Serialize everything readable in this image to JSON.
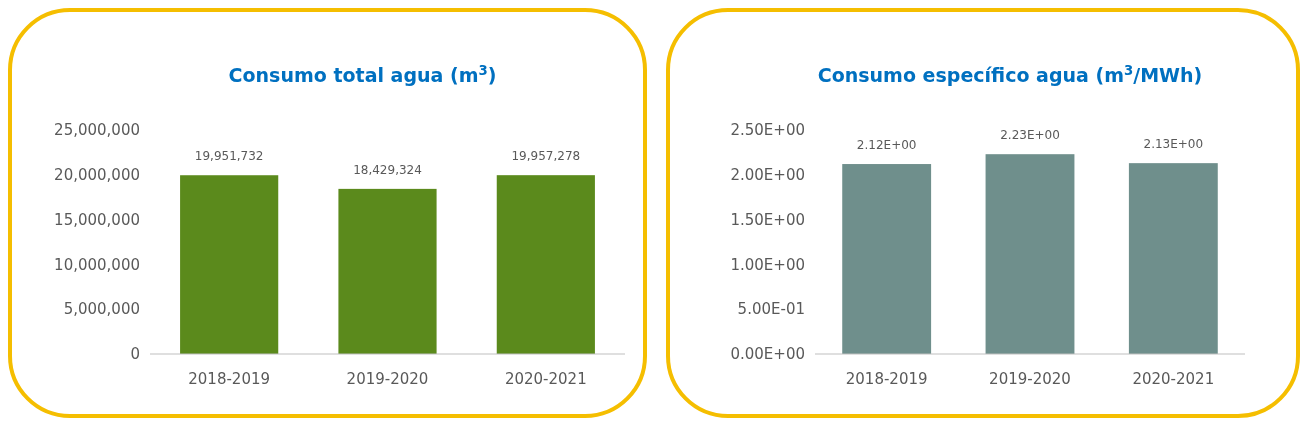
{
  "chart_data": [
    {
      "type": "bar",
      "title": "Consumo total agua (m$^{3}$)",
      "categories": [
        "2018-2019",
        "2019-2020",
        "2020-2021"
      ],
      "values": [
        19951732,
        18429324,
        19957278
      ],
      "value_labels": [
        "19,951,732",
        "18,429,324",
        "19,957,278"
      ],
      "color": "#5b8a1c",
      "ylim": [
        0,
        25000000
      ],
      "yticks": [
        {
          "value": 0,
          "label": "0"
        },
        {
          "value": 5000000,
          "label": "5,000,000"
        },
        {
          "value": 10000000,
          "label": "10,000,000"
        },
        {
          "value": 15000000,
          "label": "15,000,000"
        },
        {
          "value": 20000000,
          "label": "20,000,000"
        },
        {
          "value": 25000000,
          "label": "25,000,000"
        }
      ],
      "grid": false
    },
    {
      "type": "bar",
      "title": "Consumo específico agua (m$^{3}$/MWh)",
      "categories": [
        "2018-2019",
        "2019-2020",
        "2020-2021"
      ],
      "values": [
        2.12,
        2.23,
        2.13
      ],
      "value_labels": [
        "2.12E+00",
        "2.23E+00",
        "2.13E+00"
      ],
      "color": "#6f8f8c",
      "ylim": [
        0,
        2.5
      ],
      "yticks": [
        {
          "value": 0,
          "label": "0.00E+00"
        },
        {
          "value": 0.5,
          "label": "5.00E-01"
        },
        {
          "value": 1,
          "label": "1.00E+00"
        },
        {
          "value": 1.5,
          "label": "1.50E+00"
        },
        {
          "value": 2,
          "label": "2.00E+00"
        },
        {
          "value": 2.5,
          "label": "2.50E+00"
        }
      ],
      "grid": false
    }
  ]
}
